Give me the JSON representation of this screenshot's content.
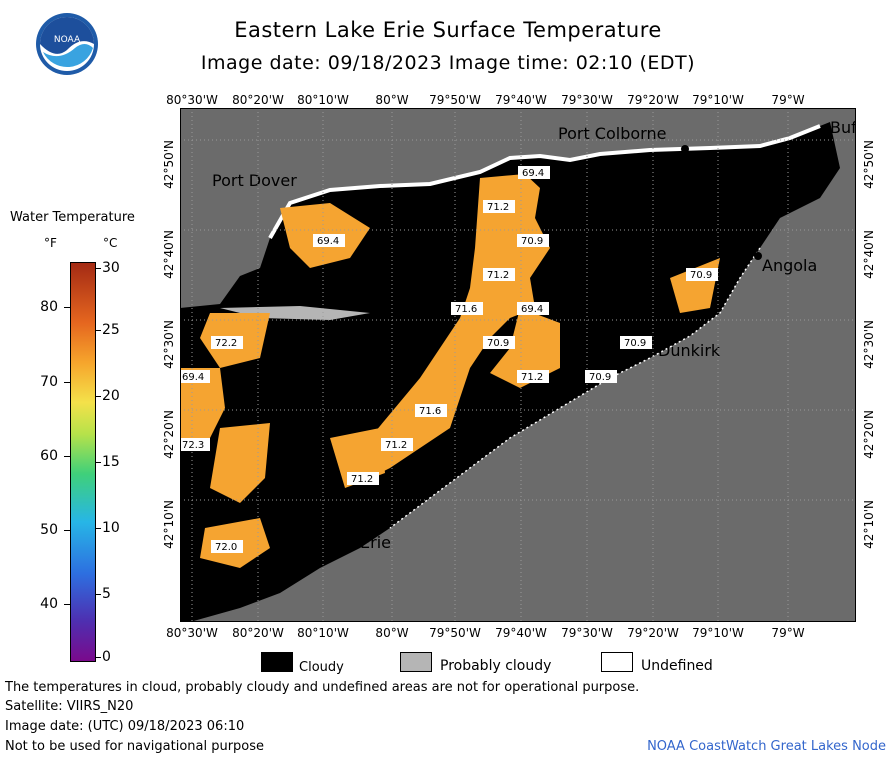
{
  "header": {
    "title": "Eastern Lake Erie Surface Temperature",
    "subtitle": "Image date: 09/18/2023     Image time: 02:10 (EDT)"
  },
  "logo": {
    "text": "NOAA",
    "icon": "noaa-logo"
  },
  "map": {
    "lon_labels": [
      "80°30'W",
      "80°20'W",
      "80°10'W",
      "80°W",
      "79°50'W",
      "79°40'W",
      "79°30'W",
      "79°20'W",
      "79°10'W",
      "79°W"
    ],
    "lat_labels": [
      "42°50'N",
      "42°40'N",
      "42°30'N",
      "42°20'N",
      "42°10'N"
    ],
    "places": {
      "port_colborne": "Port Colborne",
      "port_dover": "Port Dover",
      "buffalo": "Buf",
      "angola": "Angola",
      "dunkirk": "Dunkirk",
      "erie": "Erie"
    },
    "temperature_labels": {
      "t1": "69.4",
      "t2": "71.2",
      "t3": "69.4",
      "t4": "70.9",
      "t5": "71.2",
      "t6": "71.6",
      "t7": "69.4",
      "t8": "70.9",
      "t9": "71.2",
      "t10": "70.9",
      "t11": "71.6",
      "t12": "71.2",
      "t13": "71.2",
      "t14": "70.9",
      "t15": "72.2",
      "t16": "69.4",
      "t17": "72.3",
      "t18": "72.0",
      "t19": "70.9"
    },
    "colors": {
      "land": "#6b6b6b",
      "cloud": "#000000",
      "water": "#f5a431",
      "probably_cloudy": "#b5b5b5"
    }
  },
  "legend": {
    "title": "Water Temperature",
    "unit_f": "°F",
    "unit_c": "°C",
    "f_ticks": [
      "80",
      "70",
      "60",
      "50",
      "40"
    ],
    "c_ticks": [
      "30",
      "25",
      "20",
      "15",
      "10",
      "5",
      "0"
    ]
  },
  "key": {
    "cloudy": "Cloudy",
    "probably_cloudy": "Probably cloudy",
    "undefined": "Undefined"
  },
  "footer": {
    "disclaimer": "The temperatures in cloud, probably cloudy and undefined areas are not for operational purpose.",
    "satellite": "Satellite: VIIRS_N20",
    "utc_date": "Image date: (UTC) 09/18/2023  06:10",
    "nav_warning": "Not to be used for navigational purpose",
    "credit": "NOAA CoastWatch Great Lakes Node"
  }
}
